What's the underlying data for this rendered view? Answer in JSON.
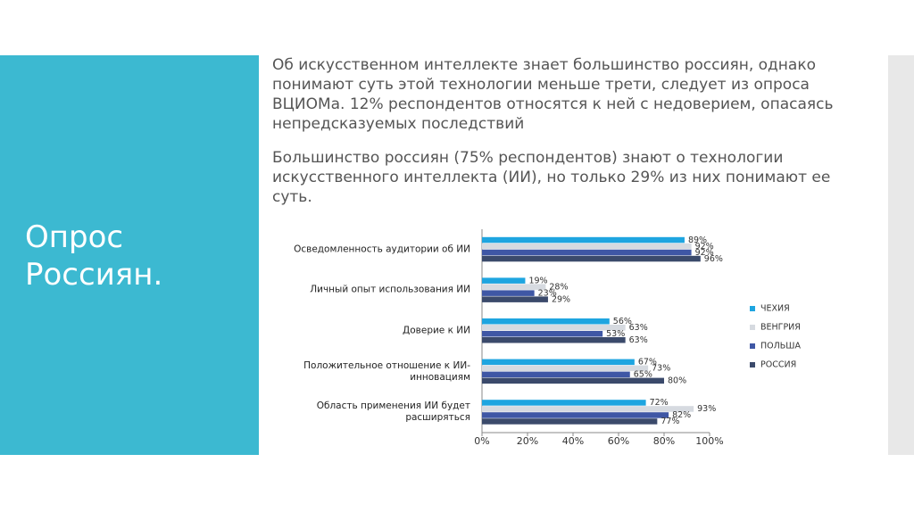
{
  "slide": {
    "title": "Опрос Россиян.",
    "paragraphs": [
      "Об искусственном интеллекте знает большинство россиян, однако понимают суть этой технологии меньше трети, следует из опроса ВЦИОМа. 12% респондентов относятся к ней с недоверием, опасаясь непредсказуемых последствий",
      "Большинство россиян (75% респондентов) знают о технологии искусственного интеллекта (ИИ), но только 29% из них понимают ее суть."
    ]
  },
  "chart_data": {
    "type": "hbar",
    "categories": [
      "Осведомленность аудитории об ИИ",
      "Личный опыт использования ИИ",
      "Доверие к ИИ",
      "Положительное отношение к ИИ-инновациям",
      "Область применения ИИ будет расширяться"
    ],
    "series": [
      {
        "name": "ЧЕХИЯ",
        "color": "#1ea5e0",
        "values": [
          89,
          19,
          56,
          67,
          72
        ],
        "value_labels": [
          "89%",
          "19%",
          "56%",
          "67%",
          "72%"
        ]
      },
      {
        "name": "ВЕНГРИЯ",
        "color": "#d6dae0",
        "values": [
          92,
          28,
          63,
          73,
          93
        ],
        "value_labels": [
          "92%",
          "28%",
          "63%",
          "73%",
          "93%"
        ]
      },
      {
        "name": "ПОЛЬША",
        "color": "#3f57a5",
        "values": [
          92,
          23,
          53,
          65,
          82
        ],
        "value_labels": [
          "92%",
          "23%",
          "53%",
          "65%",
          "82%"
        ]
      },
      {
        "name": "РОССИЯ",
        "color": "#3b4a6b",
        "values": [
          96,
          29,
          63,
          80,
          77
        ],
        "value_labels": [
          "96%",
          "29%",
          "63%",
          "80%",
          "77%"
        ]
      }
    ],
    "xlim": [
      0,
      100
    ],
    "xticks": [
      {
        "value": 0,
        "label": "0%"
      },
      {
        "value": 20,
        "label": "20%"
      },
      {
        "value": 40,
        "label": "40%"
      },
      {
        "value": 60,
        "label": "60%"
      },
      {
        "value": 80,
        "label": "80%"
      },
      {
        "value": 100,
        "label": "100%"
      }
    ],
    "legend": "right"
  }
}
